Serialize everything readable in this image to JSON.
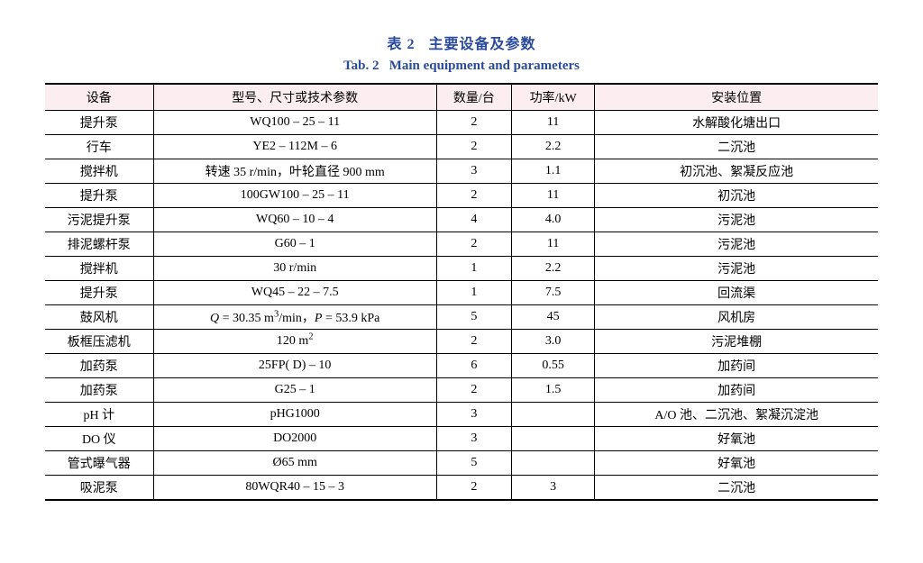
{
  "title_cn_prefix": "表 2",
  "title_cn_main": "主要设备及参数",
  "title_en_prefix": "Tab. 2",
  "title_en_main": "Main equipment and parameters",
  "colors": {
    "title_color": "#2a4a9c",
    "header_bg": "#fceef0",
    "border": "#000000",
    "text": "#000000",
    "page_bg": "#ffffff"
  },
  "typography": {
    "title_fontsize_pt": 12,
    "body_fontsize_pt": 10.5,
    "cn_font": "SimSun",
    "en_font": "Times New Roman"
  },
  "table": {
    "columns": [
      {
        "key": "equipment",
        "label": "设备",
        "width_pct": 13,
        "align": "center"
      },
      {
        "key": "model",
        "label": "型号、尺寸或技术参数",
        "width_pct": 34,
        "align": "center"
      },
      {
        "key": "qty",
        "label": "数量/台",
        "width_pct": 9,
        "align": "center"
      },
      {
        "key": "power",
        "label": "功率/kW",
        "width_pct": 10,
        "align": "center"
      },
      {
        "key": "location",
        "label": "安装位置",
        "width_pct": 34,
        "align": "center"
      }
    ],
    "rows": [
      {
        "equipment": "提升泵",
        "model": "WQ100 – 25 – 11",
        "qty": "2",
        "power": "11",
        "location": "水解酸化塘出口"
      },
      {
        "equipment": "行车",
        "model": "YE2 – 112M – 6",
        "qty": "2",
        "power": "2.2",
        "location": "二沉池"
      },
      {
        "equipment": "搅拌机",
        "model": "转速 35 r/min，叶轮直径 900 mm",
        "qty": "3",
        "power": "1.1",
        "location": "初沉池、絮凝反应池"
      },
      {
        "equipment": "提升泵",
        "model": "100GW100 – 25 – 11",
        "qty": "2",
        "power": "11",
        "location": "初沉池"
      },
      {
        "equipment": "污泥提升泵",
        "model": "WQ60 – 10 – 4",
        "qty": "4",
        "power": "4.0",
        "location": "污泥池"
      },
      {
        "equipment": "排泥螺杆泵",
        "model": "G60 – 1",
        "qty": "2",
        "power": "11",
        "location": "污泥池"
      },
      {
        "equipment": "搅拌机",
        "model": "30 r/min",
        "qty": "1",
        "power": "2.2",
        "location": "污泥池"
      },
      {
        "equipment": "提升泵",
        "model": "WQ45 – 22 – 7.5",
        "qty": "1",
        "power": "7.5",
        "location": "回流渠"
      },
      {
        "equipment": "鼓风机",
        "model_html": "<i>Q</i> = 30.35 m<sup>3</sup>/min，<i>P</i> = 53.9 kPa",
        "model": "Q = 30.35 m³/min，P = 53.9 kPa",
        "qty": "5",
        "power": "45",
        "location": "风机房"
      },
      {
        "equipment": "板框压滤机",
        "model_html": "120 m<sup>2</sup>",
        "model": "120 m²",
        "qty": "2",
        "power": "3.0",
        "location": "污泥堆棚"
      },
      {
        "equipment": "加药泵",
        "model": "25FP( D) – 10",
        "qty": "6",
        "power": "0.55",
        "location": "加药间"
      },
      {
        "equipment": "加药泵",
        "model": "G25 – 1",
        "qty": "2",
        "power": "1.5",
        "location": "加药间"
      },
      {
        "equipment": "pH 计",
        "model": "pHG1000",
        "qty": "3",
        "power": "",
        "location": "A/O 池、二沉池、絮凝沉淀池"
      },
      {
        "equipment": "DO 仪",
        "model": "DO2000",
        "qty": "3",
        "power": "",
        "location": "好氧池"
      },
      {
        "equipment": "管式曝气器",
        "model": "Ø65 mm",
        "qty": "5",
        "power": "",
        "location": "好氧池"
      },
      {
        "equipment": "吸泥泵",
        "model": "80WQR40 – 15 – 3",
        "qty": "2",
        "power": "3",
        "location": "二沉池"
      }
    ]
  }
}
